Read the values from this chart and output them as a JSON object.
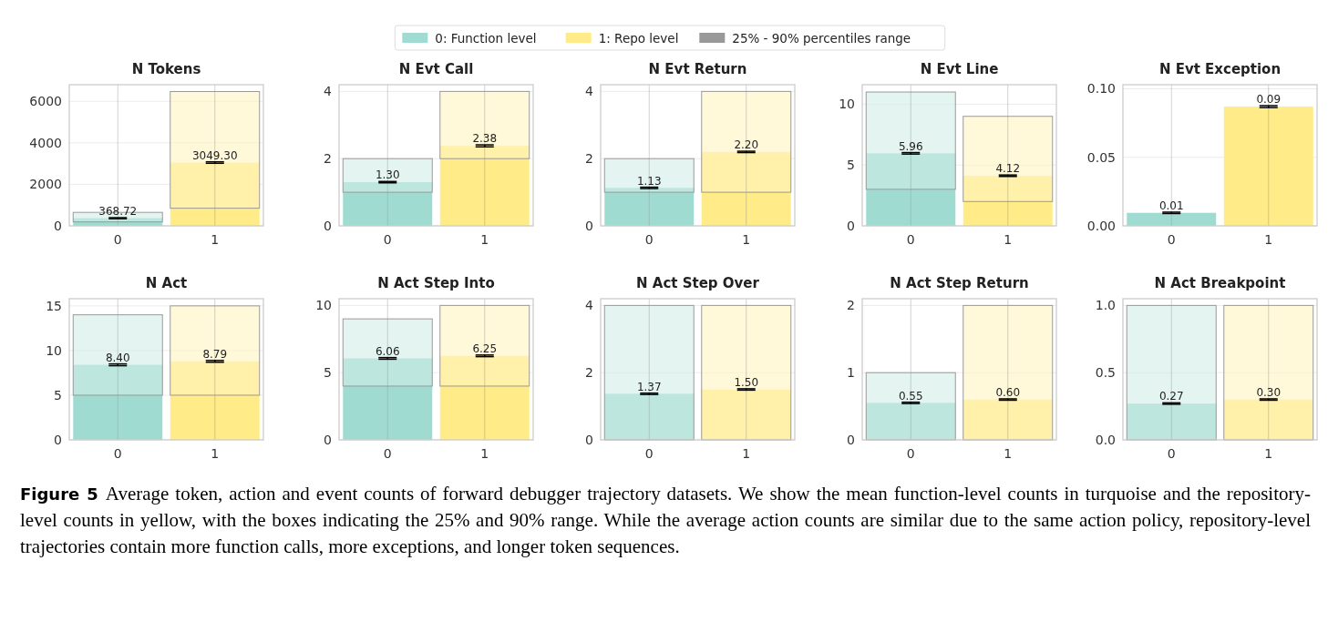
{
  "chart_data": [
    {
      "type": "bar",
      "title": "N Tokens",
      "categories": [
        "0",
        "1"
      ],
      "ylim": [
        0,
        6800
      ],
      "yticks": [
        0,
        2000,
        4000,
        6000
      ],
      "grid": true,
      "legend": "top",
      "annotations": [
        "Figure 5",
        "Average token, action and event counts of forward debugger trajectory datasets. We show the mean function-level counts in turquoise and the repository-level counts in yellow, with the boxes indicating the 25% and 90% range. While the average action counts are similar due to the same action policy, repository-level trajectories contain more function calls, more exceptions, and longer token sequences."
      ],
      "series": [
        {
          "name": "0: Function level",
          "color": "#a0dbd1",
          "values": [
            368.72,
            null
          ],
          "errors": [
            25,
            null
          ],
          "value_labels": [
            "368.72",
            null
          ]
        },
        {
          "name": "1: Repo level",
          "color": "#ffeb88",
          "values": [
            null,
            3049.3
          ],
          "errors": [
            null,
            35
          ],
          "value_labels": [
            null,
            "3049.30"
          ]
        },
        {
          "name": "25% - 90% percentiles range",
          "color": "#999999",
          "colors": [
            "#d0ede8",
            "#fff5c2"
          ],
          "base": [
            190,
            850
          ],
          "values": [
            460,
            5620
          ]
        }
      ]
    },
    {
      "type": "bar",
      "title": "N Evt Call",
      "categories": [
        "0",
        "1"
      ],
      "ylim": [
        0,
        4.2
      ],
      "yticks": [
        0,
        2,
        4
      ],
      "grid": true,
      "series": [
        {
          "color": "#a0dbd1",
          "values": [
            1.3,
            null
          ],
          "errors": [
            0.02,
            null
          ],
          "value_labels": [
            "1.30",
            null
          ]
        },
        {
          "color": "#ffeb88",
          "values": [
            null,
            2.38
          ],
          "errors": [
            null,
            0.03
          ],
          "value_labels": [
            null,
            "2.38"
          ]
        },
        {
          "color": "#999999",
          "colors": [
            "#d0ede8",
            "#fff5c2"
          ],
          "base": [
            1,
            2
          ],
          "values": [
            1,
            2
          ]
        }
      ]
    },
    {
      "type": "bar",
      "title": "N Evt Return",
      "categories": [
        "0",
        "1"
      ],
      "ylim": [
        0,
        4.2
      ],
      "yticks": [
        0,
        2,
        4
      ],
      "grid": true,
      "series": [
        {
          "color": "#a0dbd1",
          "values": [
            1.13,
            null
          ],
          "errors": [
            0.02,
            null
          ],
          "value_labels": [
            "1.13",
            null
          ]
        },
        {
          "color": "#ffeb88",
          "values": [
            null,
            2.2
          ],
          "errors": [
            null,
            0.02
          ],
          "value_labels": [
            null,
            "2.20"
          ]
        },
        {
          "color": "#999999",
          "colors": [
            "#d0ede8",
            "#fff5c2"
          ],
          "base": [
            1,
            1
          ],
          "values": [
            1,
            3
          ]
        }
      ]
    },
    {
      "type": "bar",
      "title": "N Evt Line",
      "categories": [
        "0",
        "1"
      ],
      "ylim": [
        0,
        11.6
      ],
      "yticks": [
        0,
        5,
        10
      ],
      "grid": true,
      "series": [
        {
          "color": "#a0dbd1",
          "values": [
            5.96,
            null
          ],
          "errors": [
            0.06,
            null
          ],
          "value_labels": [
            "5.96",
            null
          ]
        },
        {
          "color": "#ffeb88",
          "values": [
            null,
            4.12
          ],
          "errors": [
            null,
            0.06
          ],
          "value_labels": [
            null,
            "4.12"
          ]
        },
        {
          "color": "#999999",
          "colors": [
            "#d0ede8",
            "#fff5c2"
          ],
          "base": [
            3,
            2
          ],
          "values": [
            8,
            7
          ]
        }
      ]
    },
    {
      "type": "bar",
      "title": "N Evt Exception",
      "categories": [
        "0",
        "1"
      ],
      "ylim": [
        0,
        0.103
      ],
      "yticks": [
        {
          "value": 0,
          "label": "0.00"
        },
        {
          "value": 0.05,
          "label": "0.05"
        },
        {
          "value": 0.1,
          "label": "0.10"
        }
      ],
      "grid": true,
      "series": [
        {
          "color": "#a0dbd1",
          "values": [
            0.0095,
            null
          ],
          "errors": [
            0.0005,
            null
          ],
          "value_labels": [
            "0.01",
            null
          ]
        },
        {
          "color": "#ffeb88",
          "values": [
            null,
            0.087
          ],
          "errors": [
            null,
            0.0007
          ],
          "value_labels": [
            null,
            "0.09"
          ]
        }
      ]
    },
    {
      "type": "bar",
      "title": "N Act",
      "categories": [
        "0",
        "1"
      ],
      "ylim": [
        0,
        15.8
      ],
      "yticks": [
        0,
        5,
        10,
        15
      ],
      "grid": true,
      "series": [
        {
          "color": "#a0dbd1",
          "values": [
            8.4,
            null
          ],
          "errors": [
            0.1,
            null
          ],
          "value_labels": [
            "8.40",
            null
          ]
        },
        {
          "color": "#ffeb88",
          "values": [
            null,
            8.79
          ],
          "errors": [
            null,
            0.1
          ],
          "value_labels": [
            null,
            "8.79"
          ]
        },
        {
          "color": "#999999",
          "colors": [
            "#d0ede8",
            "#fff5c2"
          ],
          "base": [
            5,
            5
          ],
          "values": [
            9,
            10
          ]
        }
      ]
    },
    {
      "type": "bar",
      "title": "N Act Step Into",
      "categories": [
        "0",
        "1"
      ],
      "ylim": [
        0,
        10.5
      ],
      "yticks": [
        0,
        5,
        10
      ],
      "grid": true,
      "series": [
        {
          "color": "#a0dbd1",
          "values": [
            6.06,
            null
          ],
          "errors": [
            0.06,
            null
          ],
          "value_labels": [
            "6.06",
            null
          ]
        },
        {
          "color": "#ffeb88",
          "values": [
            null,
            6.25
          ],
          "errors": [
            null,
            0.06
          ],
          "value_labels": [
            null,
            "6.25"
          ]
        },
        {
          "color": "#999999",
          "colors": [
            "#d0ede8",
            "#fff5c2"
          ],
          "base": [
            4,
            4
          ],
          "values": [
            5,
            6
          ]
        }
      ]
    },
    {
      "type": "bar",
      "title": "N Act Step Over",
      "categories": [
        "0",
        "1"
      ],
      "ylim": [
        0,
        4.2
      ],
      "yticks": [
        0,
        2,
        4
      ],
      "grid": true,
      "series": [
        {
          "color": "#a0dbd1",
          "values": [
            1.37,
            null
          ],
          "errors": [
            0.02,
            null
          ],
          "value_labels": [
            "1.37",
            null
          ]
        },
        {
          "color": "#ffeb88",
          "values": [
            null,
            1.5
          ],
          "errors": [
            null,
            0.02
          ],
          "value_labels": [
            null,
            "1.50"
          ]
        },
        {
          "color": "#999999",
          "colors": [
            "#d0ede8",
            "#fff5c2"
          ],
          "base": [
            0,
            0
          ],
          "values": [
            4,
            4
          ]
        }
      ]
    },
    {
      "type": "bar",
      "title": "N Act Step Return",
      "categories": [
        "0",
        "1"
      ],
      "ylim": [
        0,
        2.1
      ],
      "yticks": [
        0,
        1,
        2
      ],
      "grid": true,
      "series": [
        {
          "color": "#a0dbd1",
          "values": [
            0.55,
            null
          ],
          "errors": [
            0.01,
            null
          ],
          "value_labels": [
            "0.55",
            null
          ]
        },
        {
          "color": "#ffeb88",
          "values": [
            null,
            0.6
          ],
          "errors": [
            null,
            0.01
          ],
          "value_labels": [
            null,
            "0.60"
          ]
        },
        {
          "color": "#999999",
          "colors": [
            "#d0ede8",
            "#fff5c2"
          ],
          "base": [
            0,
            0
          ],
          "values": [
            1,
            2
          ]
        }
      ]
    },
    {
      "type": "bar",
      "title": "N Act Breakpoint",
      "categories": [
        "0",
        "1"
      ],
      "ylim": [
        0,
        1.05
      ],
      "yticks": [
        {
          "value": 0,
          "label": "0.0"
        },
        {
          "value": 0.5,
          "label": "0.5"
        },
        {
          "value": 1,
          "label": "1.0"
        }
      ],
      "grid": true,
      "series": [
        {
          "color": "#a0dbd1",
          "values": [
            0.27,
            null
          ],
          "errors": [
            0.005,
            null
          ],
          "value_labels": [
            "0.27",
            null
          ]
        },
        {
          "color": "#ffeb88",
          "values": [
            null,
            0.3
          ],
          "errors": [
            null,
            0.005
          ],
          "value_labels": [
            null,
            "0.30"
          ]
        },
        {
          "color": "#999999",
          "colors": [
            "#d0ede8",
            "#fff5c2"
          ],
          "base": [
            0,
            0
          ],
          "values": [
            1,
            1
          ]
        }
      ]
    }
  ]
}
